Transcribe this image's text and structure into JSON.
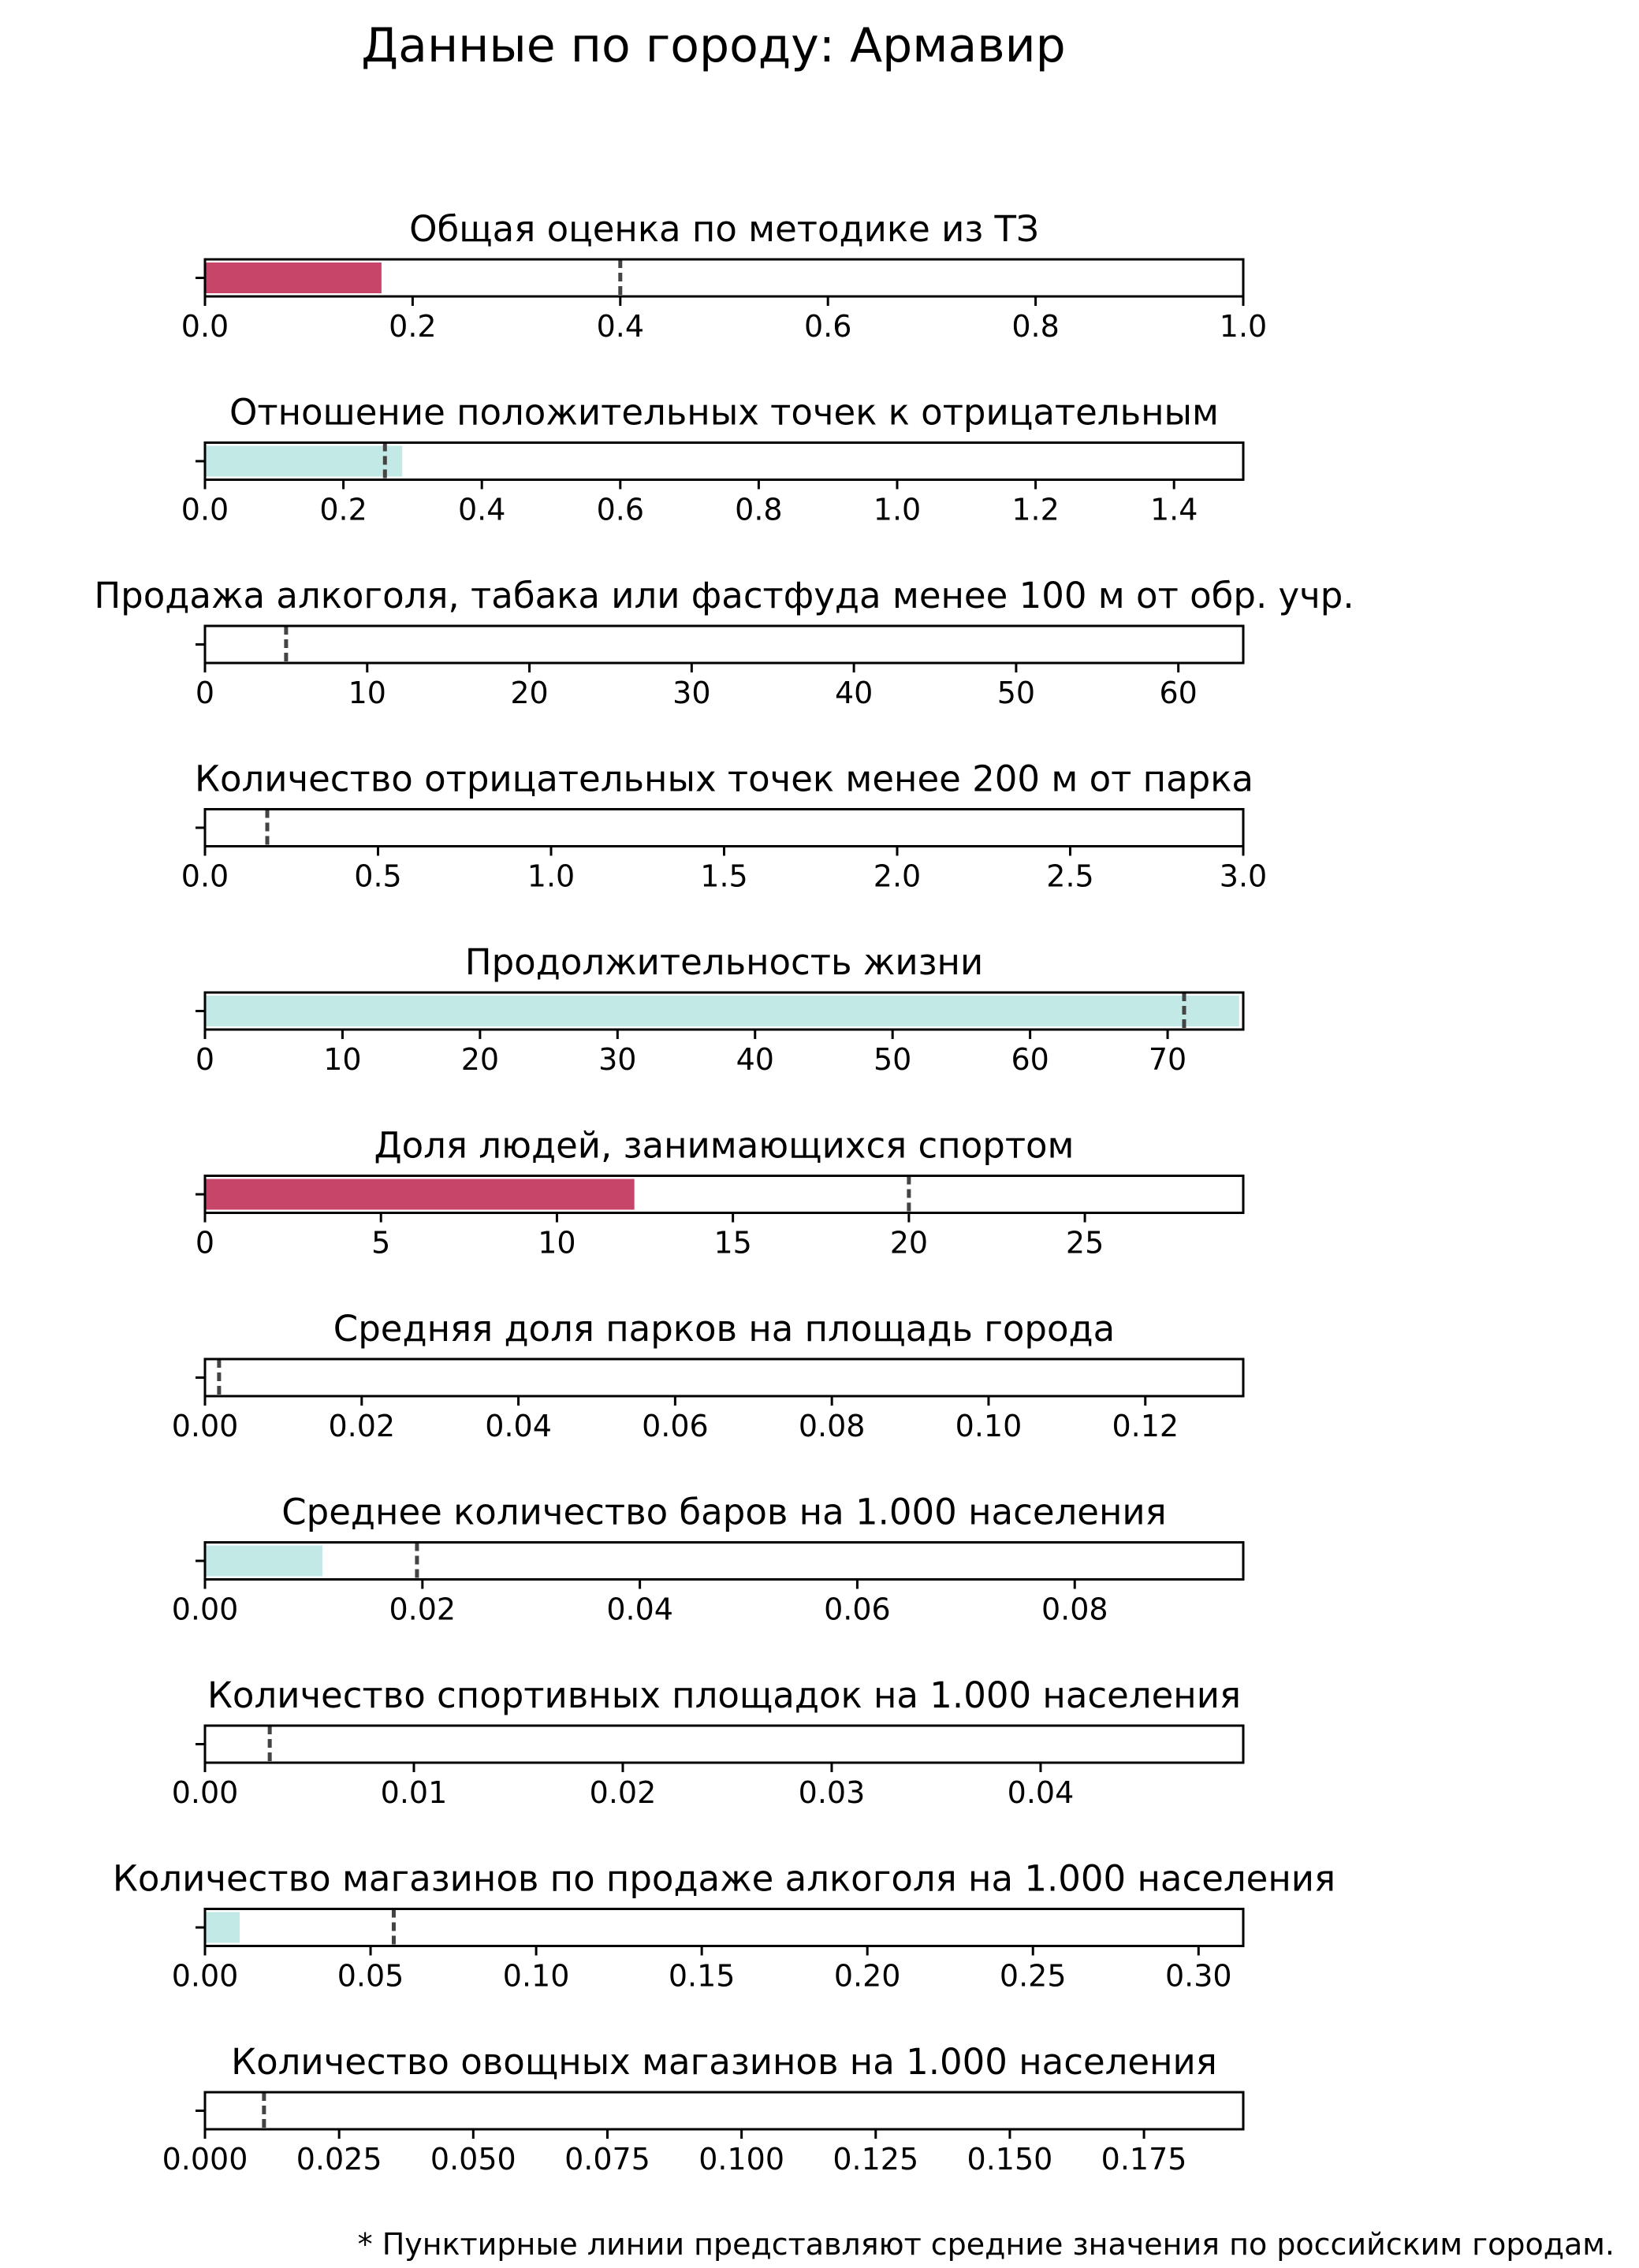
{
  "page": {
    "title": "Данные по городу: Армавир",
    "footnote": "* Пунктирные линии представляют средние значения по российским городам."
  },
  "colors": {
    "bar_below": "#c8456a",
    "bar_above": "#c2e9e6",
    "average_line": "#444444",
    "frame": "#000000"
  },
  "chart_data": [
    {
      "type": "bar",
      "orientation": "horizontal",
      "title": "Общая оценка по методике из ТЗ",
      "value": 0.17,
      "average": 0.4,
      "xlim": [
        0,
        1.0
      ],
      "ticks": [
        0,
        0.2,
        0.4,
        0.6,
        0.8,
        1.0
      ],
      "tick_labels": [
        "0.0",
        "0.2",
        "0.4",
        "0.6",
        "0.8",
        "1.0"
      ],
      "bar_color": "#c8456a"
    },
    {
      "type": "bar",
      "orientation": "horizontal",
      "title": "Отношение положительных точек к отрицательным",
      "value": 0.285,
      "average": 0.26,
      "xlim": [
        0,
        1.5
      ],
      "ticks": [
        0,
        0.2,
        0.4,
        0.6,
        0.8,
        1.0,
        1.2,
        1.4
      ],
      "tick_labels": [
        "0.0",
        "0.2",
        "0.4",
        "0.6",
        "0.8",
        "1.0",
        "1.2",
        "1.4"
      ],
      "bar_color": "#c2e9e6"
    },
    {
      "type": "bar",
      "orientation": "horizontal",
      "title": "Продажа алкоголя, табака или фастфуда менее 100 м от обр. учр.",
      "value": 0,
      "average": 5,
      "xlim": [
        0,
        64
      ],
      "ticks": [
        0,
        10,
        20,
        30,
        40,
        50,
        60
      ],
      "tick_labels": [
        "0",
        "10",
        "20",
        "30",
        "40",
        "50",
        "60"
      ],
      "bar_color": "#c2e9e6"
    },
    {
      "type": "bar",
      "orientation": "horizontal",
      "title": "Количество отрицательных точек менее 200 м от парка",
      "value": 0,
      "average": 0.18,
      "xlim": [
        0,
        3.0
      ],
      "ticks": [
        0,
        0.5,
        1.0,
        1.5,
        2.0,
        2.5,
        3.0
      ],
      "tick_labels": [
        "0.0",
        "0.5",
        "1.0",
        "1.5",
        "2.0",
        "2.5",
        "3.0"
      ],
      "bar_color": "#c2e9e6"
    },
    {
      "type": "bar",
      "orientation": "horizontal",
      "title": "Продолжительность жизни",
      "value": 75.2,
      "average": 71.2,
      "xlim": [
        0,
        75.5
      ],
      "ticks": [
        0,
        10,
        20,
        30,
        40,
        50,
        60,
        70
      ],
      "tick_labels": [
        "0",
        "10",
        "20",
        "30",
        "40",
        "50",
        "60",
        "70"
      ],
      "bar_color": "#c2e9e6"
    },
    {
      "type": "bar",
      "orientation": "horizontal",
      "title": "Доля людей, занимающихся спортом",
      "value": 12.2,
      "average": 20,
      "xlim": [
        0,
        29.5
      ],
      "ticks": [
        0,
        5,
        10,
        15,
        20,
        25
      ],
      "tick_labels": [
        "0",
        "5",
        "10",
        "15",
        "20",
        "25"
      ],
      "bar_color": "#c8456a"
    },
    {
      "type": "bar",
      "orientation": "horizontal",
      "title": "Средняя доля парков на площадь города",
      "value": 0,
      "average": 0.0018,
      "xlim": [
        0,
        0.1325
      ],
      "ticks": [
        0,
        0.02,
        0.04,
        0.06,
        0.08,
        0.1,
        0.12
      ],
      "tick_labels": [
        "0.00",
        "0.02",
        "0.04",
        "0.06",
        "0.08",
        "0.10",
        "0.12"
      ],
      "bar_color": "#c2e9e6"
    },
    {
      "type": "bar",
      "orientation": "horizontal",
      "title": "Среднее количество баров на 1.000 населения",
      "value": 0.0108,
      "average": 0.0195,
      "xlim": [
        0,
        0.0955
      ],
      "ticks": [
        0,
        0.02,
        0.04,
        0.06,
        0.08
      ],
      "tick_labels": [
        "0.00",
        "0.02",
        "0.04",
        "0.06",
        "0.08"
      ],
      "bar_color": "#c2e9e6"
    },
    {
      "type": "bar",
      "orientation": "horizontal",
      "title": "Количество спортивных площадок на 1.000 населения",
      "value": 0,
      "average": 0.0031,
      "xlim": [
        0,
        0.0497
      ],
      "ticks": [
        0,
        0.01,
        0.02,
        0.03,
        0.04
      ],
      "tick_labels": [
        "0.00",
        "0.01",
        "0.02",
        "0.03",
        "0.04"
      ],
      "bar_color": "#c2e9e6"
    },
    {
      "type": "bar",
      "orientation": "horizontal",
      "title": "Количество магазинов по продаже алкоголя на 1.000 населения",
      "value": 0.0105,
      "average": 0.057,
      "xlim": [
        0,
        0.3135
      ],
      "ticks": [
        0,
        0.05,
        0.1,
        0.15,
        0.2,
        0.25,
        0.3
      ],
      "tick_labels": [
        "0.00",
        "0.05",
        "0.10",
        "0.15",
        "0.20",
        "0.25",
        "0.30"
      ],
      "bar_color": "#c2e9e6"
    },
    {
      "type": "bar",
      "orientation": "horizontal",
      "title": "Количество овощных магазинов на 1.000 населения",
      "value": 0,
      "average": 0.011,
      "xlim": [
        0,
        0.1935
      ],
      "ticks": [
        0,
        0.025,
        0.05,
        0.075,
        0.1,
        0.125,
        0.15,
        0.175
      ],
      "tick_labels": [
        "0.000",
        "0.025",
        "0.050",
        "0.075",
        "0.100",
        "0.125",
        "0.150",
        "0.175"
      ],
      "bar_color": "#c2e9e6"
    }
  ]
}
